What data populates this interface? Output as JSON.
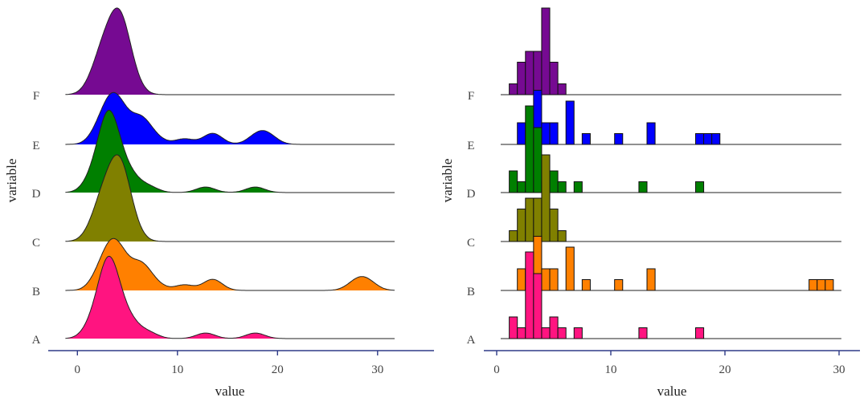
{
  "colors": {
    "A": "#FF1480",
    "B": "#FF8000",
    "C": "#808000",
    "D": "#007F00",
    "E": "#0000FF",
    "F": "#760A92",
    "axis": "#2E3A87"
  },
  "chart_data": [
    {
      "type": "area",
      "subtype": "density ridgeline",
      "xlabel": "value",
      "ylabel": "variable",
      "xticks": [
        0,
        10,
        20,
        30
      ],
      "xlim": [
        -1.2,
        31.7
      ],
      "categories": [
        "A",
        "B",
        "C",
        "D",
        "E",
        "F"
      ],
      "grid": false,
      "source": "kernel density of the same data shown in the histogram panel"
    },
    {
      "type": "bar",
      "subtype": "histogram ridgeline",
      "xlabel": "value",
      "ylabel": "variable",
      "xticks": [
        0,
        10,
        20,
        30
      ],
      "xlim": [
        -1.2,
        31.7
      ],
      "bin_start": 1.1,
      "bin_width": 0.71,
      "grid": false,
      "categories": [
        "A",
        "B",
        "C",
        "D",
        "E",
        "F"
      ],
      "series": [
        {
          "name": "A",
          "counts": [
            2,
            1,
            8,
            6,
            1,
            2,
            1,
            0,
            1,
            0,
            0,
            0,
            0,
            0,
            0,
            0,
            1,
            0,
            0,
            0,
            0,
            0,
            0,
            1,
            0,
            0,
            0,
            0,
            0,
            0,
            0,
            0,
            0,
            0,
            0,
            0,
            0,
            0,
            0,
            0
          ]
        },
        {
          "name": "B",
          "counts": [
            0,
            2,
            2,
            5,
            2,
            2,
            0,
            4,
            0,
            1,
            0,
            0,
            0,
            1,
            0,
            0,
            0,
            2,
            0,
            0,
            0,
            0,
            0,
            0,
            0,
            0,
            0,
            0,
            0,
            0,
            0,
            0,
            0,
            0,
            0,
            0,
            0,
            1,
            1,
            1
          ]
        },
        {
          "name": "C",
          "counts": [
            1,
            3,
            4,
            4,
            8,
            3,
            1,
            0,
            0,
            0,
            0,
            0,
            0,
            0,
            0,
            0,
            0,
            0,
            0,
            0,
            0,
            0,
            0,
            0,
            0,
            0,
            0,
            0,
            0,
            0,
            0,
            0,
            0,
            0,
            0,
            0,
            0,
            0,
            0,
            0
          ]
        },
        {
          "name": "D",
          "counts": [
            2,
            1,
            8,
            6,
            1,
            2,
            1,
            0,
            1,
            0,
            0,
            0,
            0,
            0,
            0,
            0,
            1,
            0,
            0,
            0,
            0,
            0,
            0,
            1,
            0,
            0,
            0,
            0,
            0,
            0,
            0,
            0,
            0,
            0,
            0,
            0,
            0,
            0,
            0,
            0
          ]
        },
        {
          "name": "E",
          "counts": [
            0,
            2,
            2,
            5,
            2,
            2,
            0,
            4,
            0,
            1,
            0,
            0,
            0,
            1,
            0,
            0,
            0,
            2,
            0,
            0,
            0,
            0,
            0,
            1,
            1,
            1,
            0,
            0,
            0,
            0,
            0,
            0,
            0,
            0,
            0,
            0,
            0,
            0,
            0,
            0
          ]
        },
        {
          "name": "F",
          "counts": [
            1,
            3,
            4,
            4,
            8,
            3,
            1,
            0,
            0,
            0,
            0,
            0,
            0,
            0,
            0,
            0,
            0,
            0,
            0,
            0,
            0,
            0,
            0,
            0,
            0,
            0,
            0,
            0,
            0,
            0,
            0,
            0,
            0,
            0,
            0,
            0,
            0,
            0,
            0,
            0
          ]
        }
      ]
    }
  ]
}
